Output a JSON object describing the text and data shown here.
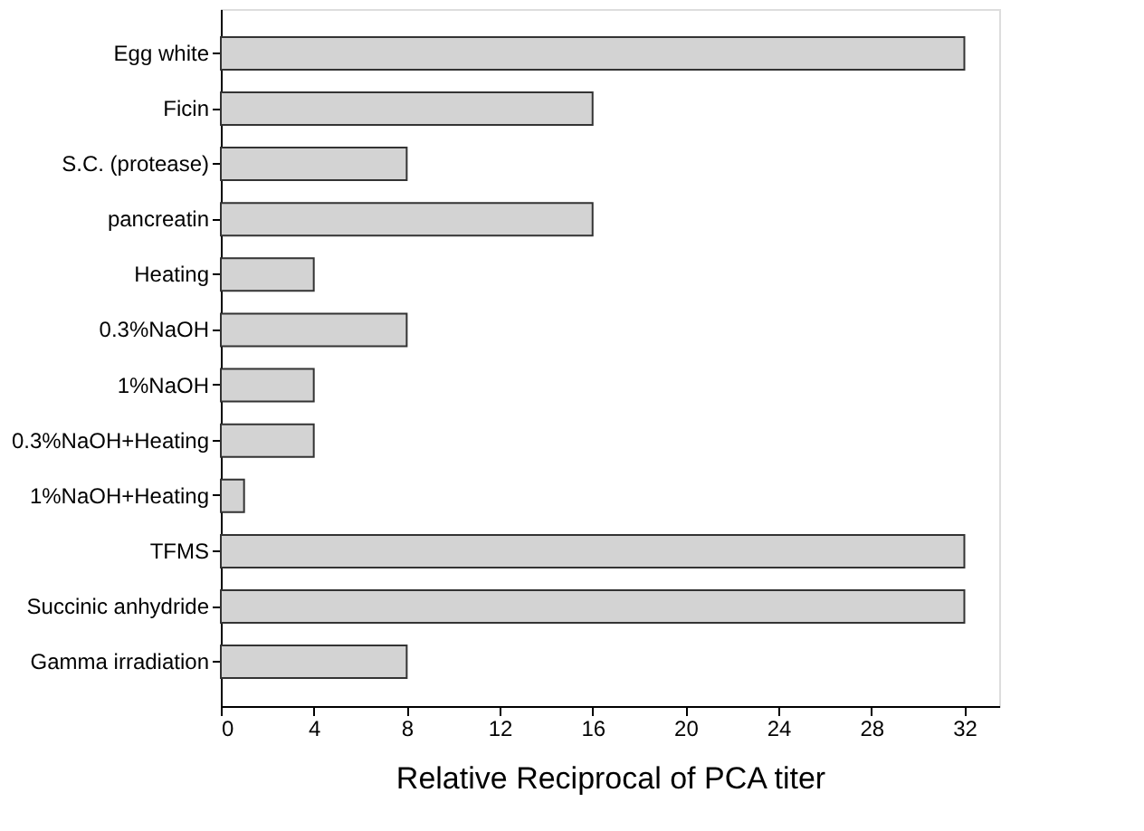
{
  "chart_data": {
    "type": "bar",
    "orientation": "horizontal",
    "xlabel": "Relative Reciprocal of PCA titer",
    "categories": [
      "Egg white",
      "Ficin",
      "S.C. (protease)",
      "pancreatin",
      "Heating",
      "0.3%NaOH",
      "1%NaOH",
      "0.3%NaOH+Heating",
      "1%NaOH+Heating",
      "TFMS",
      "Succinic anhydride",
      "Gamma irradiation"
    ],
    "values": [
      32,
      16,
      8,
      16,
      4,
      8,
      4,
      4,
      1,
      32,
      32,
      8
    ],
    "color": "#d3d3d3",
    "xlim": [
      0,
      33.5
    ],
    "xticks": [
      0,
      4,
      8,
      12,
      16,
      20,
      24,
      28,
      32
    ],
    "grid": false
  }
}
